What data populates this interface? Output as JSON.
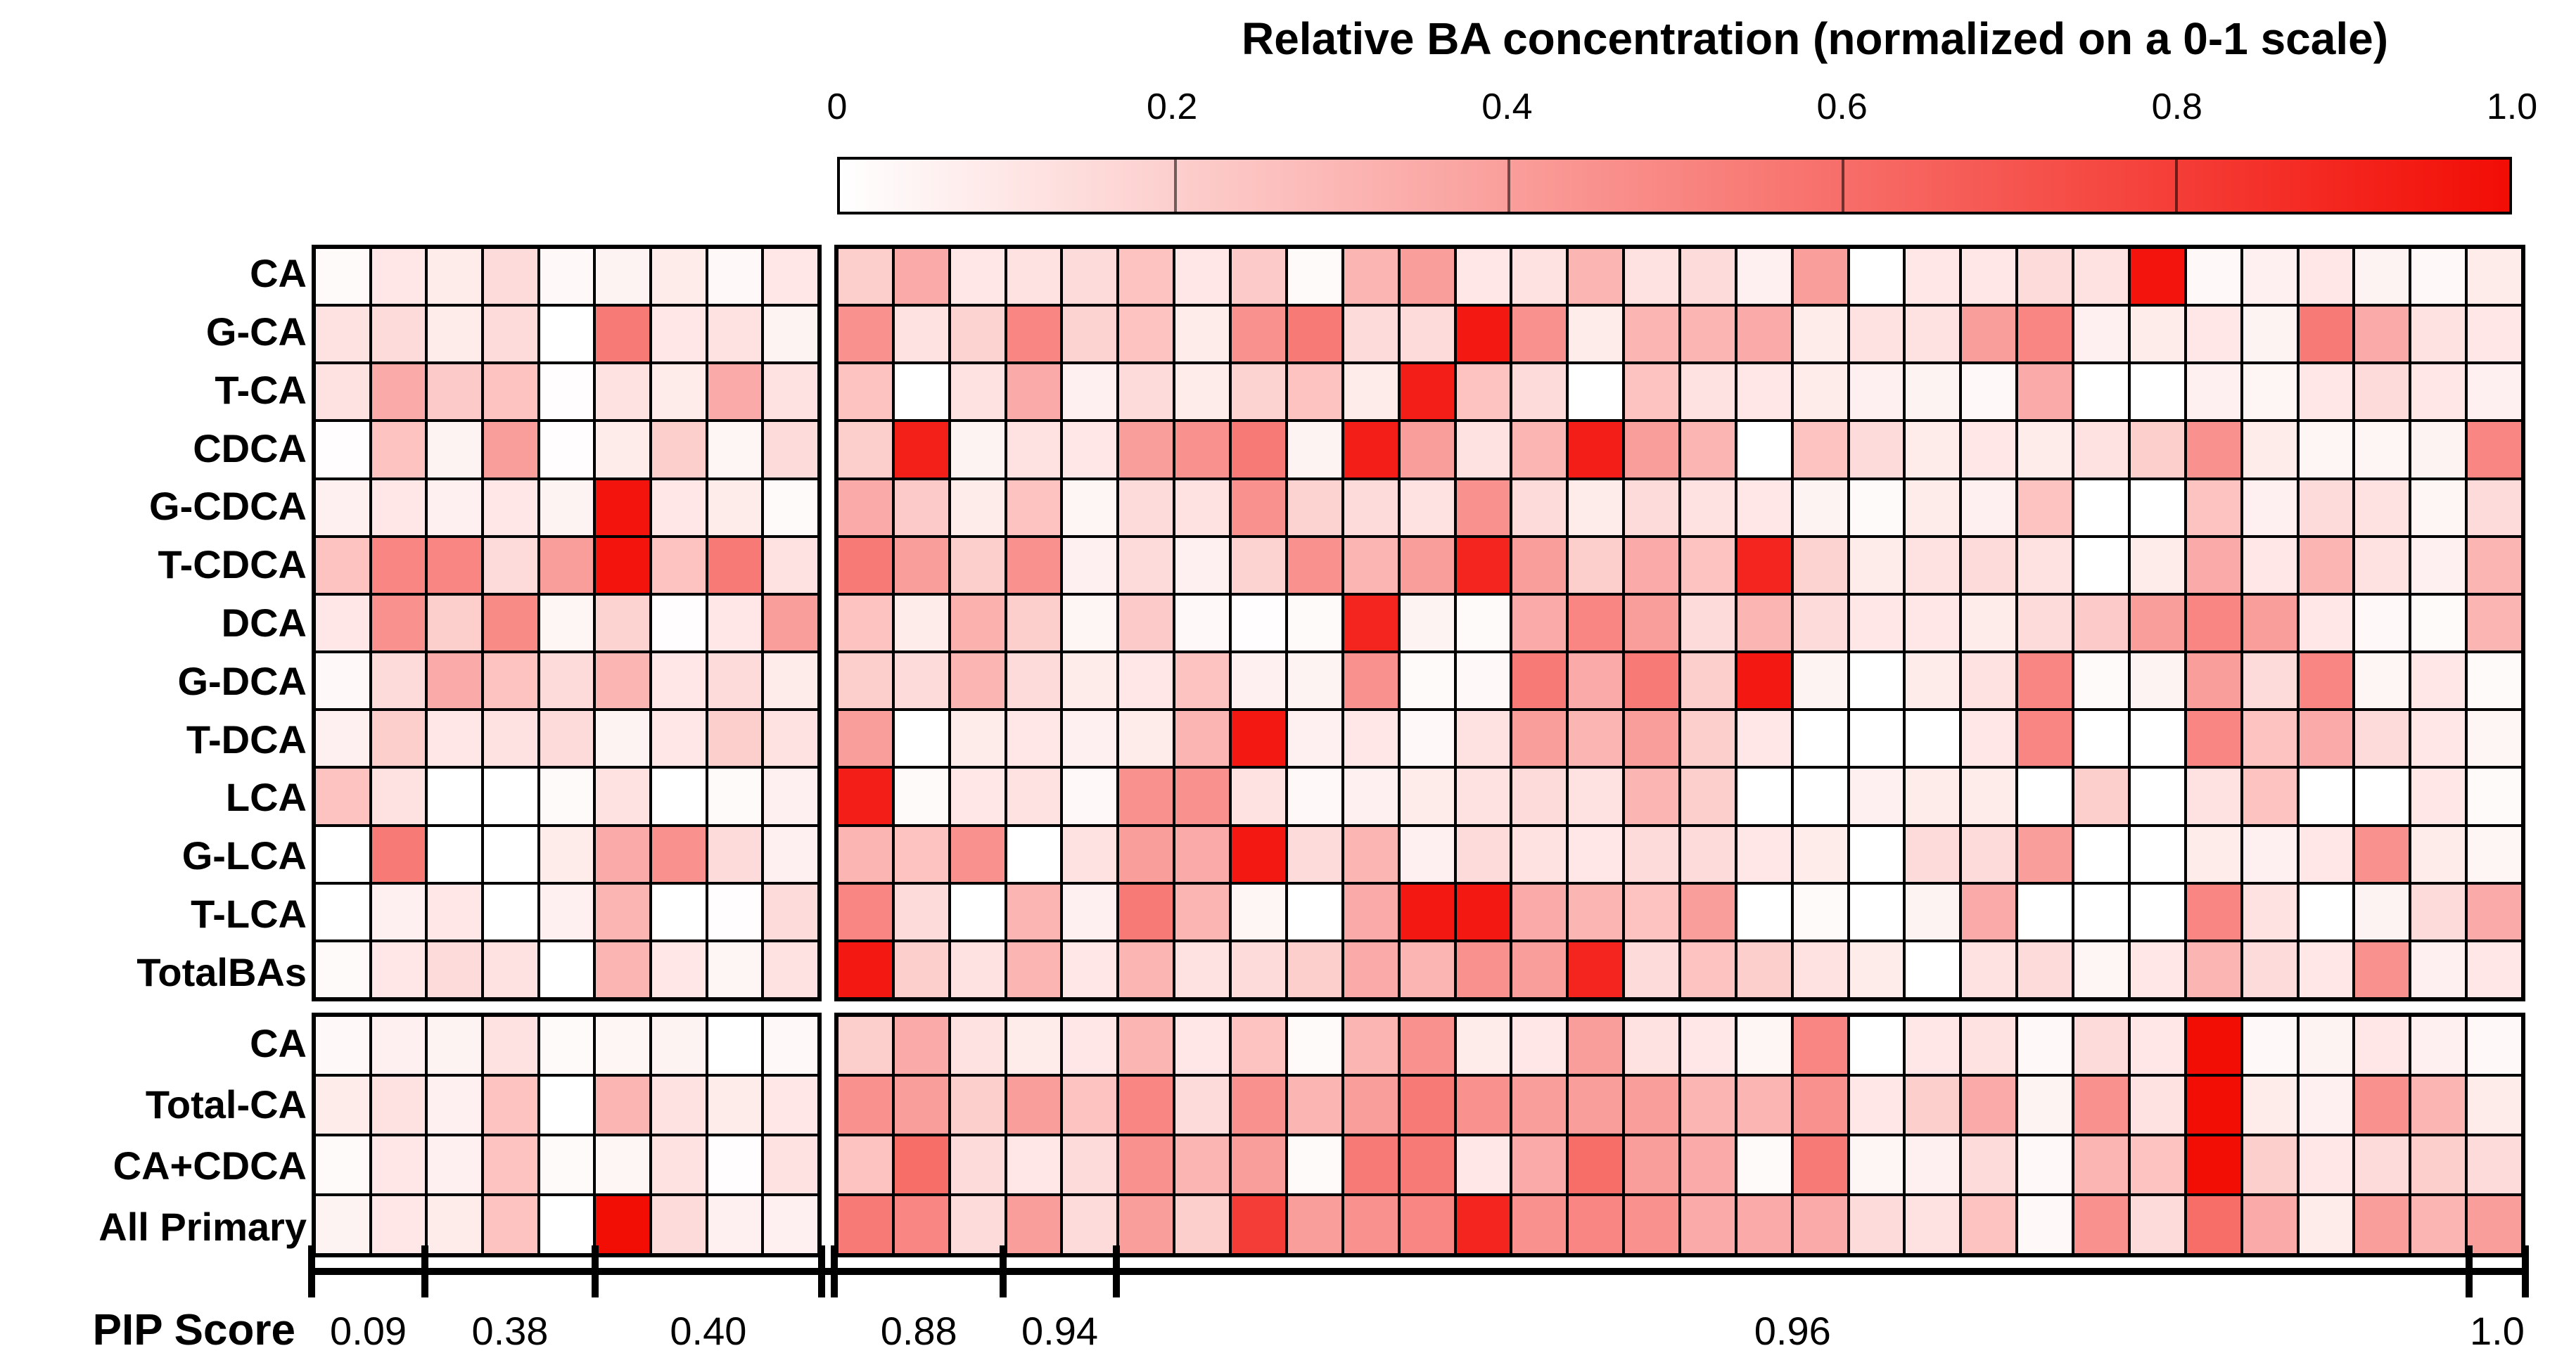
{
  "chart_data": {
    "type": "heatmap",
    "title": "Relative BA concentration (normalized on a 0-1 scale)",
    "colorbar": {
      "min_color": "#ffffff",
      "max_color": "#f20d05",
      "ticks": [
        {
          "pos": 0.0,
          "label": "0"
        },
        {
          "pos": 0.2,
          "label": "0.2"
        },
        {
          "pos": 0.4,
          "label": "0.4"
        },
        {
          "pos": 0.6,
          "label": "0.6"
        },
        {
          "pos": 0.8,
          "label": "0.8"
        },
        {
          "pos": 1.0,
          "label": "1.0"
        }
      ]
    },
    "value_range": [
      0,
      1
    ],
    "grid_line_color": "#000000",
    "x_axis_label": "PIP Score",
    "column_groups": [
      {
        "n_cols": 9,
        "pip_segments": [
          {
            "label": "0.09",
            "cols": 2
          },
          {
            "label": "0.38",
            "cols": 3
          },
          {
            "label": "0.40",
            "cols": 4
          }
        ]
      },
      {
        "n_cols": 30,
        "pip_segments": [
          {
            "label": "0.88",
            "cols": 3
          },
          {
            "label": "0.94",
            "cols": 2
          },
          {
            "label": "0.96",
            "cols": 24
          },
          {
            "label": "1.0",
            "cols": 1
          }
        ]
      }
    ],
    "blocks": [
      {
        "rows": [
          "CA",
          "G-CA",
          "T-CA",
          "CDCA",
          "G-CDCA",
          "T-CDCA",
          "DCA",
          "G-DCA",
          "T-DCA",
          "LCA",
          "G-LCA",
          "T-LCA",
          "TotalBAs"
        ],
        "values": [
          [
            0.02,
            0.1,
            0.08,
            0.15,
            0.03,
            0.05,
            0.08,
            0.03,
            0.1,
            0.2,
            0.35,
            0.1,
            0.12,
            0.15,
            0.25,
            0.1,
            0.22,
            0.02,
            0.3,
            0.4,
            0.1,
            0.12,
            0.3,
            0.12,
            0.15,
            0.06,
            0.4,
            0.0,
            0.1,
            0.1,
            0.15,
            0.12,
            0.97,
            0.03,
            0.06,
            0.1,
            0.05,
            0.03,
            0.08
          ],
          [
            0.12,
            0.15,
            0.08,
            0.15,
            0.0,
            0.55,
            0.1,
            0.12,
            0.05,
            0.45,
            0.12,
            0.18,
            0.5,
            0.18,
            0.25,
            0.08,
            0.45,
            0.55,
            0.15,
            0.15,
            0.95,
            0.45,
            0.08,
            0.3,
            0.3,
            0.35,
            0.08,
            0.12,
            0.12,
            0.4,
            0.5,
            0.06,
            0.08,
            0.1,
            0.05,
            0.55,
            0.35,
            0.12,
            0.1
          ],
          [
            0.12,
            0.35,
            0.22,
            0.25,
            0.01,
            0.12,
            0.08,
            0.35,
            0.12,
            0.25,
            0.0,
            0.12,
            0.35,
            0.06,
            0.15,
            0.08,
            0.18,
            0.25,
            0.08,
            0.93,
            0.25,
            0.15,
            0.0,
            0.25,
            0.12,
            0.1,
            0.08,
            0.06,
            0.05,
            0.03,
            0.35,
            0.0,
            0.0,
            0.06,
            0.04,
            0.1,
            0.15,
            0.1,
            0.06
          ],
          [
            0.01,
            0.25,
            0.05,
            0.4,
            0.01,
            0.08,
            0.2,
            0.04,
            0.15,
            0.2,
            0.92,
            0.05,
            0.12,
            0.1,
            0.4,
            0.45,
            0.55,
            0.05,
            0.93,
            0.4,
            0.12,
            0.3,
            0.93,
            0.4,
            0.3,
            0.0,
            0.25,
            0.15,
            0.08,
            0.1,
            0.08,
            0.12,
            0.2,
            0.45,
            0.08,
            0.04,
            0.04,
            0.05,
            0.5
          ],
          [
            0.06,
            0.1,
            0.06,
            0.1,
            0.05,
            0.97,
            0.1,
            0.08,
            0.02,
            0.35,
            0.22,
            0.08,
            0.25,
            0.04,
            0.15,
            0.12,
            0.45,
            0.18,
            0.15,
            0.12,
            0.45,
            0.15,
            0.08,
            0.15,
            0.12,
            0.1,
            0.05,
            0.02,
            0.08,
            0.06,
            0.25,
            0.0,
            0.0,
            0.25,
            0.06,
            0.15,
            0.12,
            0.04,
            0.15
          ],
          [
            0.25,
            0.5,
            0.5,
            0.15,
            0.4,
            0.97,
            0.25,
            0.55,
            0.12,
            0.55,
            0.4,
            0.2,
            0.45,
            0.06,
            0.15,
            0.06,
            0.18,
            0.45,
            0.3,
            0.4,
            0.9,
            0.4,
            0.2,
            0.35,
            0.25,
            0.9,
            0.18,
            0.08,
            0.12,
            0.15,
            0.12,
            0.0,
            0.08,
            0.35,
            0.1,
            0.3,
            0.12,
            0.06,
            0.3
          ],
          [
            0.1,
            0.45,
            0.2,
            0.48,
            0.04,
            0.18,
            0.01,
            0.1,
            0.4,
            0.25,
            0.08,
            0.32,
            0.2,
            0.04,
            0.22,
            0.03,
            0.01,
            0.02,
            0.9,
            0.05,
            0.02,
            0.35,
            0.5,
            0.4,
            0.15,
            0.3,
            0.15,
            0.1,
            0.1,
            0.08,
            0.15,
            0.22,
            0.4,
            0.5,
            0.4,
            0.1,
            0.03,
            0.02,
            0.3
          ],
          [
            0.03,
            0.15,
            0.35,
            0.25,
            0.15,
            0.3,
            0.1,
            0.15,
            0.08,
            0.2,
            0.15,
            0.3,
            0.15,
            0.08,
            0.1,
            0.25,
            0.06,
            0.05,
            0.45,
            0.02,
            0.03,
            0.55,
            0.35,
            0.55,
            0.2,
            0.95,
            0.05,
            0.0,
            0.08,
            0.12,
            0.5,
            0.02,
            0.05,
            0.4,
            0.15,
            0.5,
            0.04,
            0.1,
            0.02
          ],
          [
            0.06,
            0.2,
            0.1,
            0.12,
            0.15,
            0.05,
            0.1,
            0.2,
            0.12,
            0.4,
            0.0,
            0.08,
            0.1,
            0.06,
            0.08,
            0.3,
            0.95,
            0.06,
            0.1,
            0.03,
            0.12,
            0.4,
            0.3,
            0.4,
            0.2,
            0.1,
            0.0,
            0.0,
            0.0,
            0.1,
            0.5,
            0.0,
            0.0,
            0.5,
            0.25,
            0.35,
            0.15,
            0.1,
            0.04
          ],
          [
            0.25,
            0.12,
            0.0,
            0.0,
            0.02,
            0.12,
            0.0,
            0.02,
            0.06,
            0.93,
            0.02,
            0.1,
            0.12,
            0.03,
            0.45,
            0.45,
            0.12,
            0.03,
            0.06,
            0.08,
            0.12,
            0.15,
            0.12,
            0.3,
            0.2,
            0.0,
            0.0,
            0.06,
            0.08,
            0.08,
            0.0,
            0.2,
            0.0,
            0.12,
            0.25,
            0.0,
            0.0,
            0.1,
            0.02
          ],
          [
            0.0,
            0.55,
            0.0,
            0.0,
            0.08,
            0.35,
            0.45,
            0.15,
            0.06,
            0.3,
            0.25,
            0.45,
            0.0,
            0.12,
            0.4,
            0.35,
            0.95,
            0.15,
            0.3,
            0.06,
            0.15,
            0.12,
            0.1,
            0.15,
            0.15,
            0.1,
            0.08,
            0.0,
            0.15,
            0.15,
            0.4,
            0.0,
            0.0,
            0.08,
            0.06,
            0.1,
            0.45,
            0.08,
            0.04
          ],
          [
            0.0,
            0.06,
            0.1,
            0.0,
            0.06,
            0.3,
            0.0,
            0.01,
            0.15,
            0.5,
            0.15,
            0.0,
            0.3,
            0.06,
            0.55,
            0.3,
            0.04,
            0.0,
            0.35,
            0.95,
            0.95,
            0.35,
            0.3,
            0.25,
            0.4,
            0.0,
            0.02,
            0.0,
            0.05,
            0.35,
            0.0,
            0.0,
            0.0,
            0.5,
            0.12,
            0.0,
            0.05,
            0.15,
            0.35
          ],
          [
            0.02,
            0.1,
            0.15,
            0.12,
            0.0,
            0.3,
            0.1,
            0.04,
            0.12,
            0.95,
            0.2,
            0.12,
            0.3,
            0.1,
            0.3,
            0.12,
            0.15,
            0.2,
            0.35,
            0.3,
            0.45,
            0.4,
            0.9,
            0.15,
            0.25,
            0.2,
            0.12,
            0.08,
            0.0,
            0.12,
            0.15,
            0.04,
            0.1,
            0.3,
            0.15,
            0.1,
            0.45,
            0.06,
            0.1
          ]
        ]
      },
      {
        "rows": [
          "CA",
          "Total-CA",
          "CA+CDCA",
          "All Primary"
        ],
        "values": [
          [
            0.03,
            0.06,
            0.05,
            0.12,
            0.02,
            0.04,
            0.05,
            0.0,
            0.03,
            0.2,
            0.35,
            0.12,
            0.08,
            0.1,
            0.3,
            0.1,
            0.25,
            0.02,
            0.3,
            0.45,
            0.08,
            0.1,
            0.4,
            0.12,
            0.1,
            0.04,
            0.5,
            0.0,
            0.1,
            0.12,
            0.03,
            0.15,
            0.1,
            1.0,
            0.03,
            0.05,
            0.1,
            0.06,
            0.03
          ],
          [
            0.08,
            0.12,
            0.06,
            0.25,
            0.0,
            0.3,
            0.12,
            0.08,
            0.1,
            0.45,
            0.4,
            0.2,
            0.4,
            0.25,
            0.5,
            0.15,
            0.45,
            0.3,
            0.4,
            0.55,
            0.45,
            0.4,
            0.4,
            0.4,
            0.3,
            0.3,
            0.45,
            0.1,
            0.2,
            0.35,
            0.05,
            0.45,
            0.12,
            1.0,
            0.08,
            0.06,
            0.45,
            0.3,
            0.08
          ],
          [
            0.02,
            0.1,
            0.06,
            0.25,
            0.02,
            0.04,
            0.12,
            0.01,
            0.12,
            0.25,
            0.6,
            0.15,
            0.1,
            0.15,
            0.45,
            0.3,
            0.4,
            0.02,
            0.55,
            0.55,
            0.1,
            0.35,
            0.6,
            0.4,
            0.35,
            0.02,
            0.55,
            0.04,
            0.06,
            0.15,
            0.03,
            0.3,
            0.25,
            1.0,
            0.2,
            0.1,
            0.15,
            0.2,
            0.15
          ],
          [
            0.05,
            0.1,
            0.08,
            0.25,
            0.0,
            1.0,
            0.15,
            0.06,
            0.06,
            0.55,
            0.5,
            0.15,
            0.4,
            0.15,
            0.4,
            0.2,
            0.8,
            0.4,
            0.45,
            0.5,
            0.9,
            0.45,
            0.5,
            0.45,
            0.35,
            0.35,
            0.35,
            0.15,
            0.12,
            0.25,
            0.03,
            0.45,
            0.15,
            0.6,
            0.35,
            0.08,
            0.4,
            0.3,
            0.4
          ]
        ]
      }
    ]
  }
}
